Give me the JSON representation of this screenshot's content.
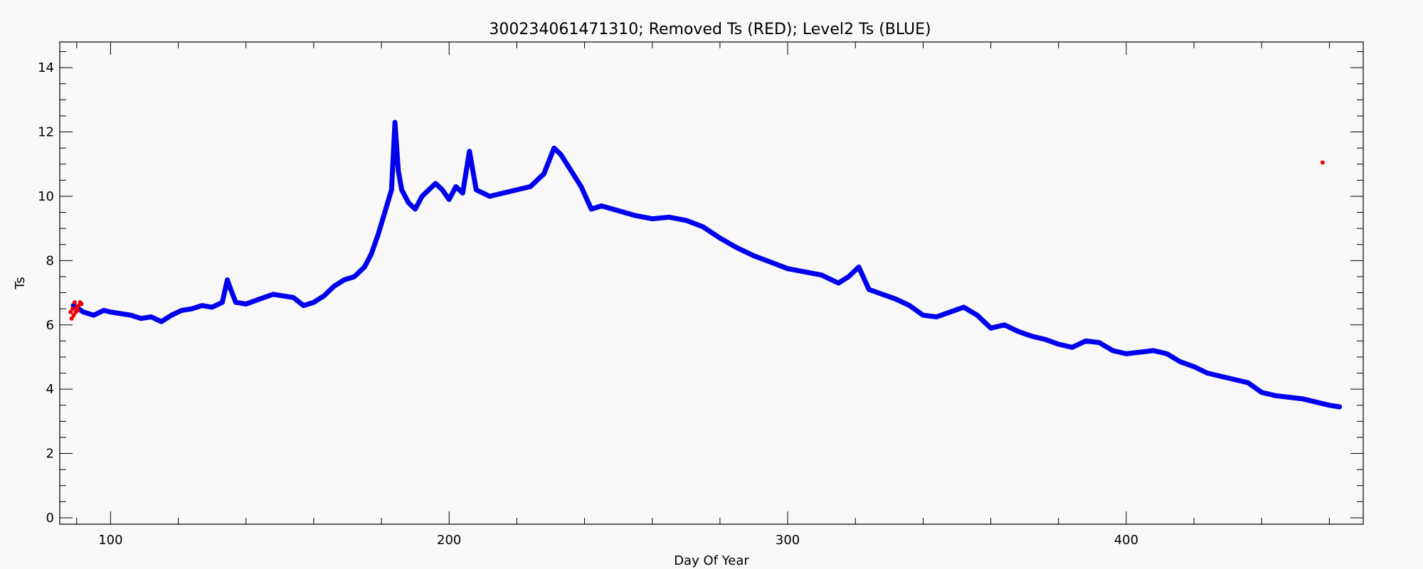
{
  "chart_data": {
    "type": "scatter",
    "title": "300234061471310; Removed Ts (RED); Level2 Ts (BLUE)",
    "xlabel": "Day Of Year",
    "ylabel": "Ts",
    "xlim": [
      85,
      470
    ],
    "ylim": [
      -0.2,
      14.8
    ],
    "x_ticks": [
      100,
      200,
      300,
      400
    ],
    "y_ticks": [
      0,
      2,
      4,
      6,
      8,
      10,
      12,
      14
    ],
    "grid": false,
    "colors": {
      "level2": "#0000ee",
      "removed": "#ee0000",
      "axis": "#000000",
      "background": "#f8f8f8"
    },
    "series": [
      {
        "name": "Level2 Ts (BLUE)",
        "color": "#0000ee",
        "x": [
          89,
          92,
          95,
          98,
          100,
          103,
          106,
          109,
          112,
          115,
          118,
          121,
          124,
          127,
          130,
          133,
          134.5,
          135.5,
          137,
          140,
          144,
          148,
          151,
          154,
          157,
          160,
          163,
          166,
          169,
          172,
          175,
          177,
          179,
          181,
          183,
          184,
          185,
          186,
          188,
          190,
          192,
          194,
          196,
          198,
          200,
          202,
          204,
          206,
          208,
          212,
          216,
          220,
          224,
          228,
          231,
          233,
          236,
          239,
          242,
          245,
          250,
          255,
          260,
          265,
          270,
          275,
          280,
          285,
          290,
          295,
          300,
          305,
          310,
          315,
          318,
          321,
          324,
          328,
          332,
          336,
          340,
          344,
          348,
          352,
          356,
          360,
          364,
          368,
          372,
          376,
          380,
          384,
          388,
          392,
          396,
          400,
          404,
          408,
          412,
          416,
          420,
          424,
          428,
          432,
          436,
          440,
          444,
          448,
          452,
          456,
          460,
          463
        ],
        "y": [
          6.6,
          6.4,
          6.3,
          6.45,
          6.4,
          6.35,
          6.3,
          6.2,
          6.25,
          6.1,
          6.3,
          6.45,
          6.5,
          6.6,
          6.55,
          6.7,
          7.4,
          7.1,
          6.7,
          6.65,
          6.8,
          6.95,
          6.9,
          6.85,
          6.6,
          6.7,
          6.9,
          7.2,
          7.4,
          7.5,
          7.8,
          8.2,
          8.8,
          9.5,
          10.2,
          12.3,
          10.8,
          10.2,
          9.8,
          9.6,
          10.0,
          10.2,
          10.4,
          10.2,
          9.9,
          10.3,
          10.1,
          11.4,
          10.2,
          10.0,
          10.1,
          10.2,
          10.3,
          10.7,
          11.5,
          11.3,
          10.8,
          10.3,
          9.6,
          9.7,
          9.55,
          9.4,
          9.3,
          9.35,
          9.25,
          9.05,
          8.7,
          8.4,
          8.15,
          7.95,
          7.75,
          7.65,
          7.55,
          7.3,
          7.5,
          7.8,
          7.1,
          6.95,
          6.8,
          6.6,
          6.3,
          6.25,
          6.4,
          6.55,
          6.3,
          5.9,
          6.0,
          5.8,
          5.65,
          5.55,
          5.4,
          5.3,
          5.5,
          5.45,
          5.2,
          5.1,
          5.15,
          5.2,
          5.1,
          4.85,
          4.7,
          4.5,
          4.4,
          4.3,
          4.2,
          3.9,
          3.8,
          3.75,
          3.7,
          3.6,
          3.5,
          3.45
        ]
      },
      {
        "name": "Removed Ts (RED)",
        "color": "#ee0000",
        "x": [
          88.2,
          88.5,
          88.8,
          89.1,
          89.4,
          89.7,
          90.0,
          90.3,
          90.6,
          91.0,
          91.4,
          458
        ],
        "y": [
          6.4,
          6.2,
          6.5,
          6.3,
          6.7,
          6.4,
          6.55,
          6.45,
          6.6,
          6.7,
          6.65,
          11.05
        ]
      }
    ]
  }
}
